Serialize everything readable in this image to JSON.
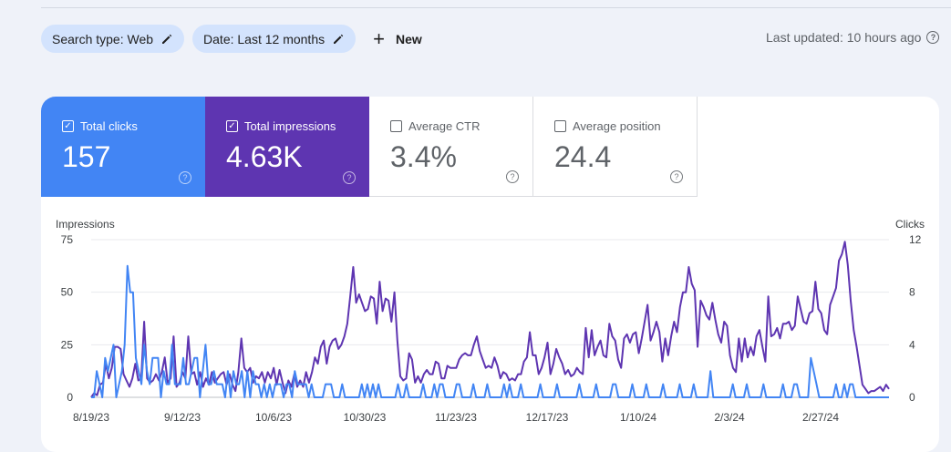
{
  "filters": {
    "search_type": "Search type: Web",
    "date": "Date: Last 12 months",
    "new_label": "New"
  },
  "last_updated": "Last updated: 10 hours ago",
  "metrics": [
    {
      "label": "Total clicks",
      "value": "157",
      "checked": true,
      "color": "#4285f4"
    },
    {
      "label": "Total impressions",
      "value": "4.63K",
      "checked": true,
      "color": "#5e35b1"
    },
    {
      "label": "Average CTR",
      "value": "3.4%",
      "checked": false
    },
    {
      "label": "Average position",
      "value": "24.4",
      "checked": false
    }
  ],
  "chart_data": {
    "type": "line",
    "left_axis": {
      "label": "Impressions",
      "ticks": [
        0,
        25,
        50,
        75
      ],
      "range": [
        0,
        75
      ]
    },
    "right_axis": {
      "label": "Clicks",
      "ticks": [
        0,
        4,
        8,
        12
      ],
      "range": [
        0,
        12
      ]
    },
    "x_tick_labels": [
      "8/19/23",
      "9/12/23",
      "10/6/23",
      "10/30/23",
      "11/23/23",
      "12/17/23",
      "1/10/24",
      "2/3/24",
      "2/27/24"
    ],
    "series": [
      {
        "name": "Impressions",
        "axis": "left",
        "color": "#5e35b1",
        "values": [
          0,
          2,
          1,
          6,
          7,
          16,
          9,
          14,
          24,
          24,
          23,
          11,
          8,
          5,
          9,
          16,
          8,
          9,
          36,
          9,
          7,
          8,
          11,
          8,
          12,
          19,
          7,
          9,
          29,
          5,
          7,
          12,
          9,
          29,
          11,
          12,
          6,
          12,
          5,
          9,
          6,
          12,
          7,
          9,
          11,
          12,
          6,
          11,
          6,
          3,
          12,
          28,
          14,
          12,
          14,
          7,
          10,
          9,
          12,
          7,
          12,
          9,
          14,
          6,
          13,
          7,
          2,
          8,
          5,
          11,
          5,
          8,
          5,
          12,
          7,
          12,
          19,
          16,
          24,
          27,
          16,
          24,
          27,
          28,
          23,
          25,
          29,
          35,
          48,
          62,
          45,
          49,
          45,
          41,
          42,
          48,
          47,
          35,
          55,
          41,
          47,
          46,
          36,
          50,
          27,
          10,
          8,
          9,
          21,
          18,
          7,
          10,
          7,
          11,
          13,
          11,
          11,
          17,
          16,
          9,
          9,
          15,
          14,
          14,
          14,
          18,
          20,
          21,
          20,
          20,
          25,
          29,
          22,
          18,
          14,
          15,
          14,
          19,
          15,
          9,
          12,
          11,
          8,
          9,
          8,
          11,
          11,
          17,
          19,
          31,
          20,
          20,
          11,
          14,
          19,
          26,
          11,
          16,
          23,
          19,
          16,
          11,
          13,
          10,
          11,
          14,
          12,
          11,
          33,
          19,
          32,
          20,
          24,
          27,
          20,
          19,
          35,
          29,
          27,
          18,
          14,
          28,
          30,
          26,
          30,
          31,
          21,
          28,
          36,
          44,
          27,
          31,
          36,
          31,
          17,
          28,
          20,
          29,
          36,
          31,
          43,
          50,
          50,
          62,
          54,
          51,
          24,
          46,
          43,
          39,
          37,
          45,
          37,
          30,
          26,
          36,
          34,
          20,
          14,
          12,
          28,
          17,
          28,
          19,
          24,
          20,
          29,
          32,
          24,
          17,
          48,
          29,
          30,
          33,
          28,
          35,
          35,
          36,
          32,
          34,
          48,
          42,
          36,
          35,
          40,
          41,
          55,
          42,
          40,
          32,
          30,
          44,
          48,
          52,
          65,
          68,
          74,
          63,
          46,
          32,
          24,
          15,
          6,
          4,
          2,
          3,
          3,
          4,
          5,
          3,
          6,
          4
        ]
      },
      {
        "name": "Clicks",
        "axis": "right",
        "color": "#4285f4",
        "values": [
          0,
          0,
          2,
          1,
          0,
          3,
          2,
          3,
          4,
          0,
          1,
          2,
          4,
          10,
          8,
          8,
          3,
          2,
          1,
          4,
          2,
          1,
          3,
          3,
          3,
          0,
          2,
          1,
          1,
          4,
          1,
          1,
          1,
          3,
          1,
          1,
          2,
          3,
          3,
          0,
          2,
          4,
          1,
          1,
          2,
          1,
          1,
          1,
          0,
          2,
          0,
          2,
          1,
          1,
          2,
          0,
          2,
          0,
          2,
          1,
          1,
          0,
          1,
          0,
          1,
          0,
          1,
          1,
          1,
          0,
          1,
          1,
          0,
          2,
          1,
          1,
          1,
          1,
          0,
          1,
          0,
          0,
          0,
          0,
          1,
          1,
          1,
          0,
          0,
          0,
          1,
          0,
          0,
          0,
          0,
          0,
          0,
          1,
          0,
          1,
          0,
          1,
          0,
          1,
          0,
          0,
          0,
          0,
          0,
          0,
          1,
          0,
          0,
          1,
          0,
          0,
          0,
          0,
          0,
          1,
          0,
          0,
          0,
          1,
          0,
          1,
          1,
          0,
          0,
          0,
          0,
          1,
          1,
          0,
          0,
          0,
          0,
          1,
          0,
          0,
          0,
          0,
          1,
          0,
          0,
          0,
          0,
          0,
          1,
          0,
          1,
          0,
          0,
          0,
          1,
          0,
          0,
          0,
          0,
          0,
          0,
          1,
          0,
          0,
          0,
          0,
          0,
          1,
          0,
          0,
          0,
          0,
          0,
          0,
          0,
          1,
          0,
          0,
          0,
          0,
          0,
          1,
          0,
          0,
          0,
          0,
          0,
          1,
          1,
          0,
          0,
          0,
          0,
          0,
          1,
          0,
          0,
          0,
          0,
          1,
          0,
          0,
          0,
          0,
          0,
          1,
          0,
          0,
          0,
          0,
          0,
          1,
          0,
          0,
          0,
          0,
          1,
          0,
          0,
          0,
          0,
          0,
          2,
          0,
          0,
          0,
          0,
          0,
          0,
          0,
          1,
          0,
          0,
          0,
          0,
          1,
          0,
          0,
          0,
          0,
          0,
          1,
          0,
          0,
          0,
          0,
          0,
          0,
          1,
          0,
          0,
          0,
          1,
          1,
          0,
          0,
          0,
          0,
          3,
          2,
          1,
          0,
          0,
          0,
          0,
          0,
          0,
          1,
          0,
          0,
          1,
          0,
          1,
          1,
          0,
          0,
          0,
          0,
          0,
          0,
          0,
          0,
          0,
          0,
          0,
          0,
          0
        ]
      }
    ]
  }
}
